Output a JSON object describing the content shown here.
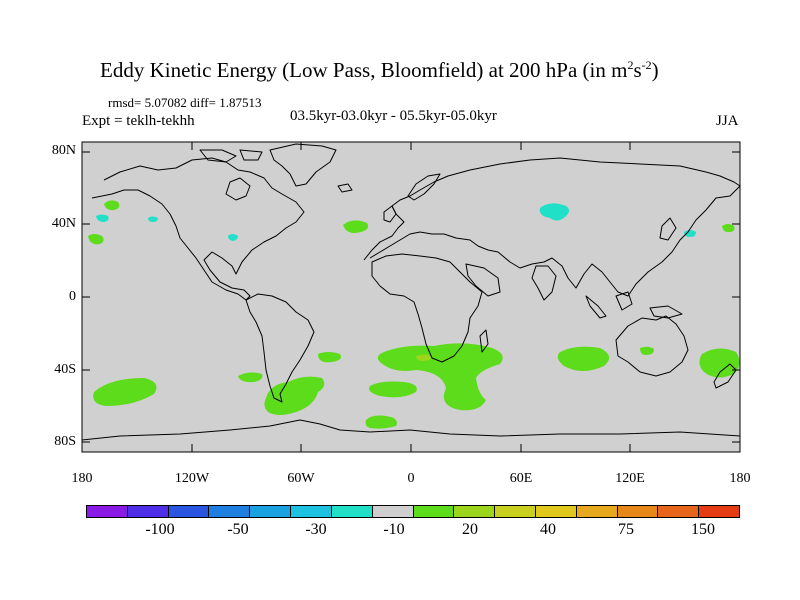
{
  "title": {
    "main": "Eddy Kinetic Energy (Low Pass, Bloomfield) at 200 hPa (in m",
    "sup1": "2",
    "mid": "s",
    "sup2": "-2",
    "end": ")"
  },
  "stats": "rmsd= 5.07082 diff= 1.87513",
  "expt": "Expt = teklh-tekhh",
  "period": "03.5kyr-03.0kyr - 05.5kyr-05.0kyr",
  "season": "JJA",
  "axes": {
    "lat_labels": [
      "80N",
      "40N",
      "0",
      "40S",
      "80S"
    ],
    "lon_labels": [
      "180",
      "120W",
      "60W",
      "0",
      "60E",
      "120E",
      "180"
    ]
  },
  "colorbar": {
    "colors": [
      "#8a1be6",
      "#4f2ee8",
      "#2a55e0",
      "#1f7fe0",
      "#1aa1e0",
      "#1cc2e0",
      "#21e0c8",
      "#cfcfcf",
      "#5ddc1c",
      "#9bd61c",
      "#c8cf1e",
      "#e0c81c",
      "#e6a81c",
      "#e6871a",
      "#e6651a",
      "#e63c14"
    ],
    "labels": [
      "-100",
      "-50",
      "-30",
      "-10",
      "20",
      "40",
      "75",
      "150"
    ]
  },
  "field_colors": {
    "background": "#d0d0d0",
    "positive": "#5ddc1c",
    "positive_high": "#9bd61c",
    "negative": "#21e0c8"
  }
}
